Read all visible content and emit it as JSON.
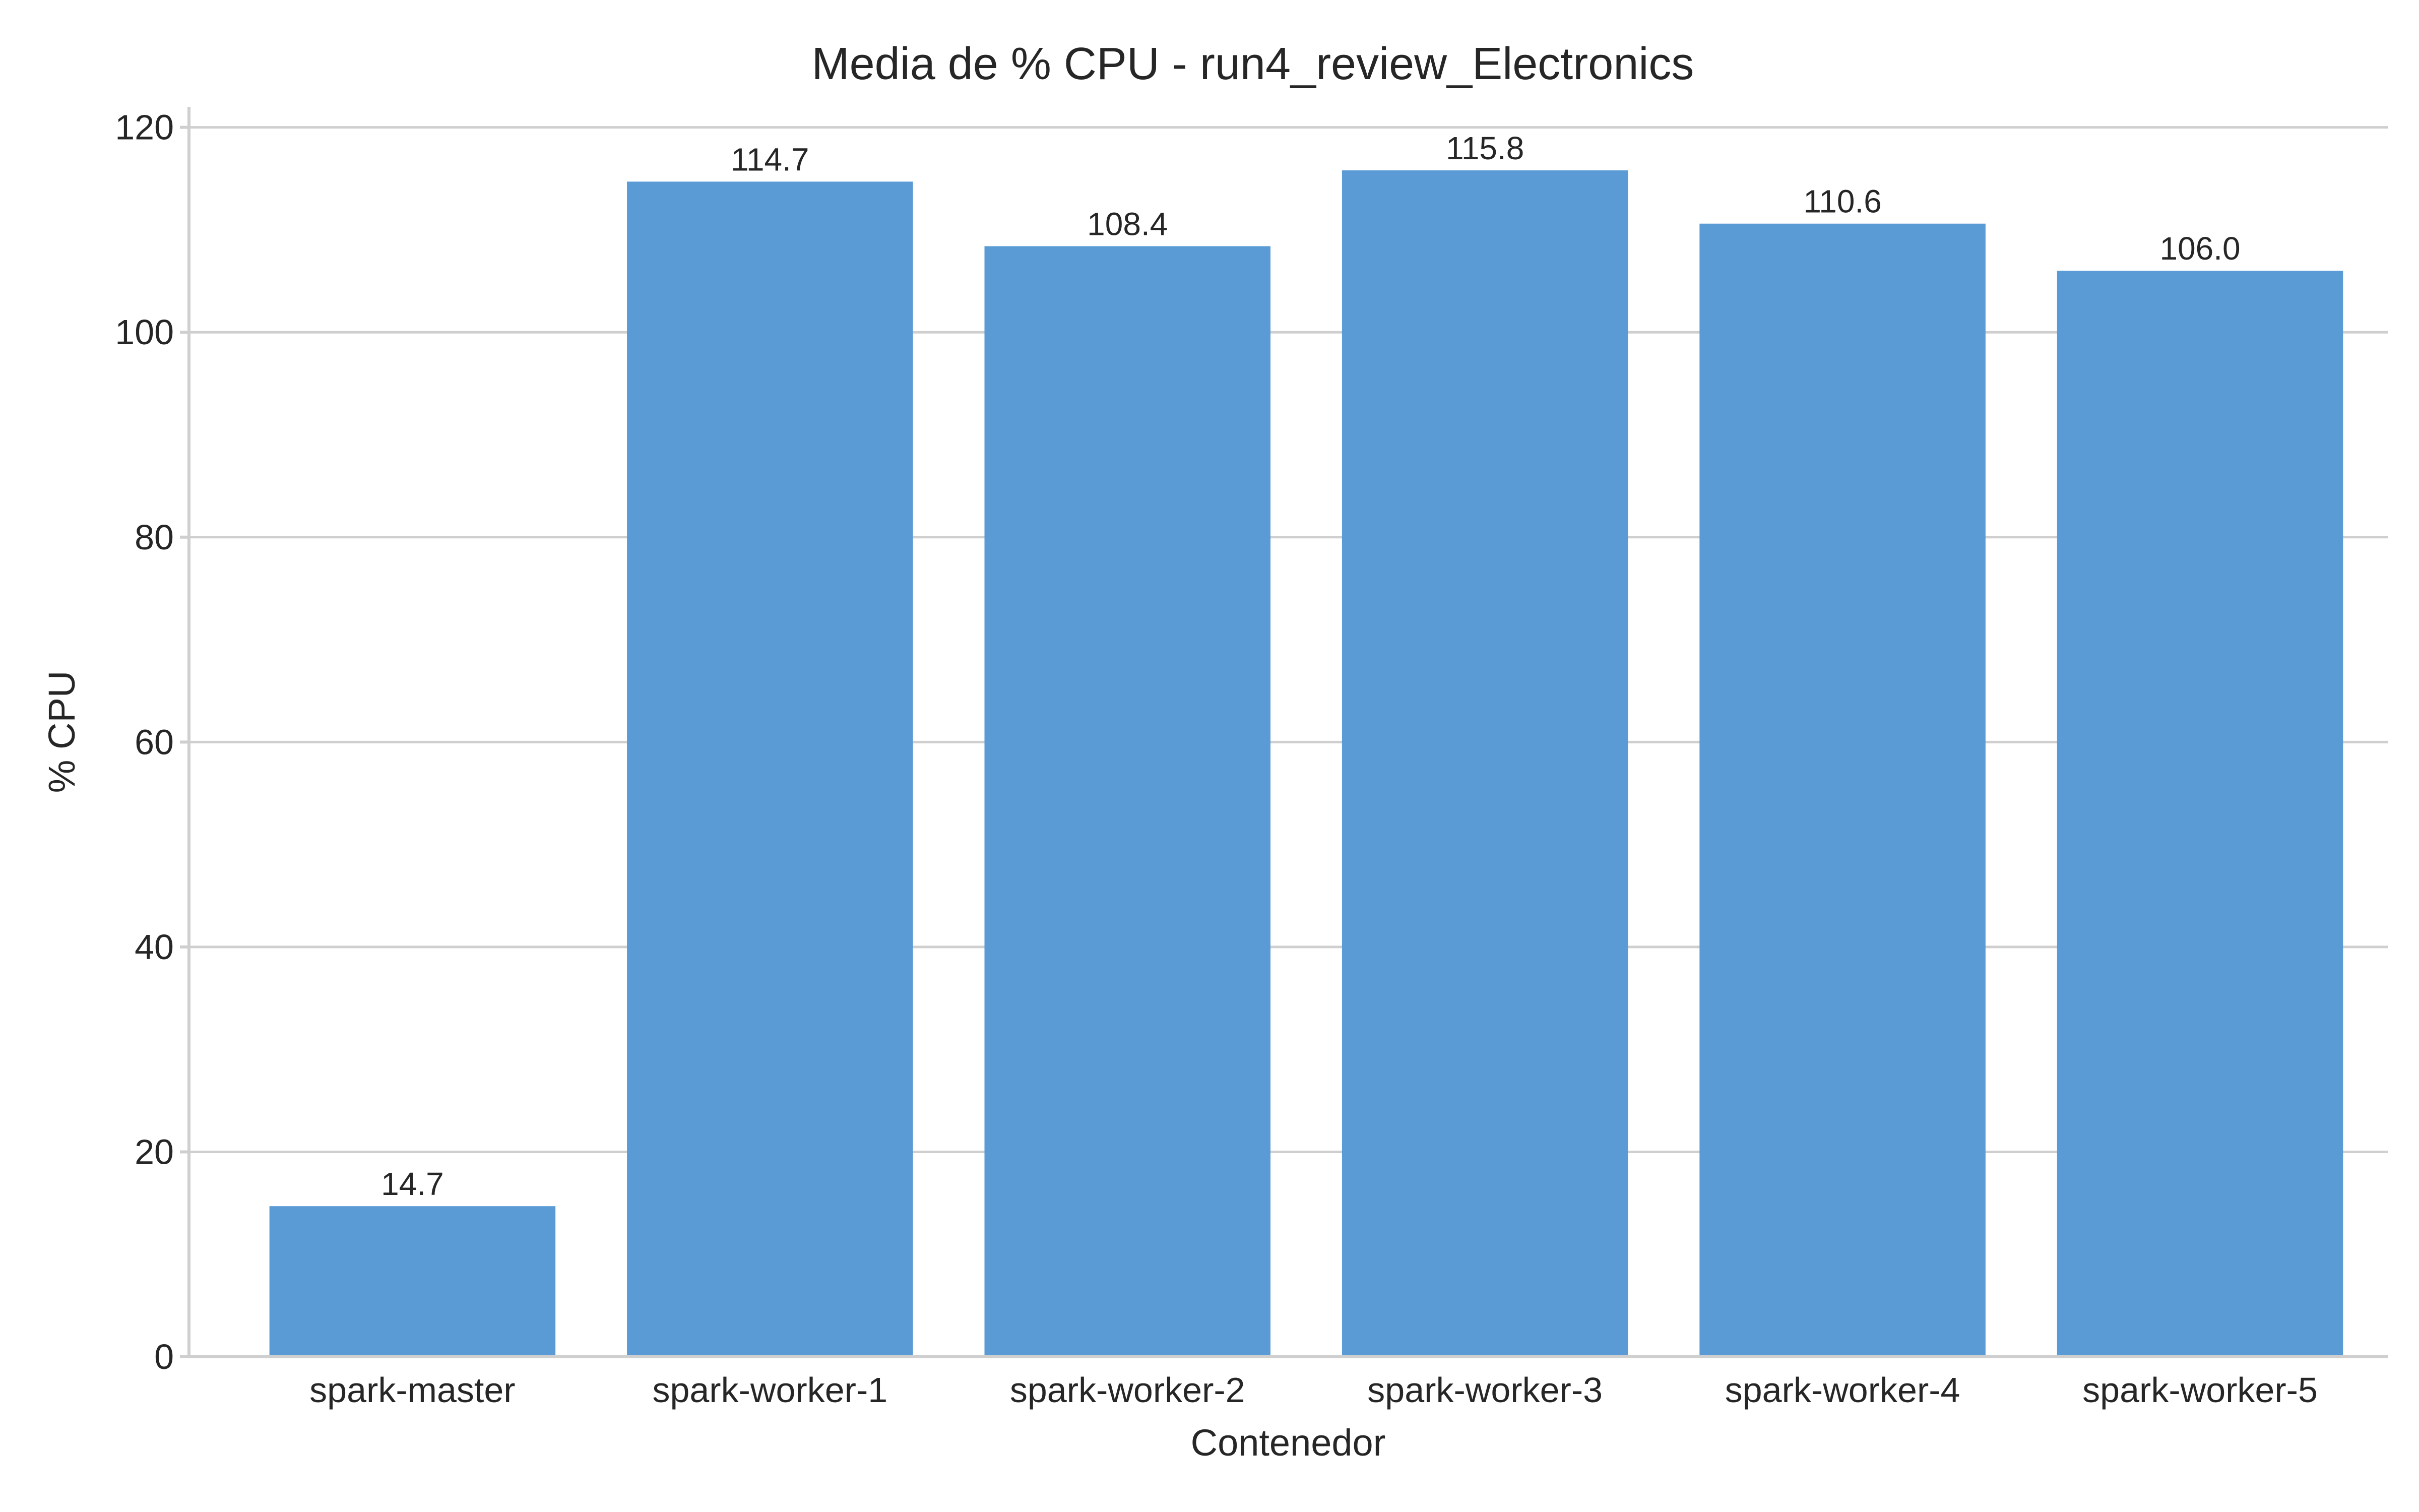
{
  "chart_data": {
    "type": "bar",
    "title": "Media de % CPU - run4_review_Electronics",
    "xlabel": "Contenedor",
    "ylabel": "% CPU",
    "categories": [
      "spark-master",
      "spark-worker-1",
      "spark-worker-2",
      "spark-worker-3",
      "spark-worker-4",
      "spark-worker-5"
    ],
    "values": [
      14.7,
      114.7,
      108.4,
      115.8,
      110.6,
      106.0
    ],
    "value_labels": [
      "14.7",
      "114.7",
      "108.4",
      "115.8",
      "110.6",
      "106.0"
    ],
    "ylim": [
      0,
      122
    ],
    "yticks": [
      0,
      20,
      40,
      60,
      80,
      100,
      120
    ],
    "grid": true,
    "bar_color": "#5b9bd5"
  }
}
